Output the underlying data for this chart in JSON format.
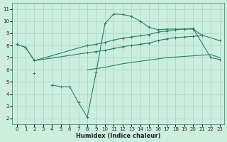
{
  "xlabel": "Humidex (Indice chaleur)",
  "bg_color": "#cceedd",
  "grid_color": "#aaddcc",
  "line_color": "#2d7d6b",
  "xlim": [
    -0.5,
    23.5
  ],
  "ylim": [
    1.5,
    11.5
  ],
  "xticks": [
    0,
    1,
    2,
    3,
    4,
    5,
    6,
    7,
    8,
    9,
    10,
    11,
    12,
    13,
    14,
    15,
    16,
    17,
    18,
    19,
    20,
    21,
    22,
    23
  ],
  "yticks": [
    2,
    3,
    4,
    5,
    6,
    7,
    8,
    9,
    10,
    11
  ],
  "line1_x": [
    0,
    1,
    2,
    8,
    9,
    10,
    11,
    12,
    13,
    14,
    15,
    16,
    17,
    18,
    19,
    20,
    22,
    23
  ],
  "line1_y": [
    8.1,
    7.85,
    6.75,
    8.0,
    8.1,
    8.25,
    8.45,
    8.6,
    8.7,
    8.8,
    8.9,
    9.1,
    9.2,
    9.3,
    9.35,
    9.4,
    7.0,
    6.85
  ],
  "line2_x": [
    0,
    1,
    2,
    8,
    9,
    10,
    11,
    12,
    13,
    14,
    15,
    16,
    17,
    18,
    19,
    20,
    21,
    22,
    23
  ],
  "line2_y": [
    8.1,
    7.85,
    6.75,
    7.4,
    7.5,
    7.6,
    7.75,
    7.9,
    8.0,
    8.1,
    8.2,
    8.4,
    8.55,
    8.65,
    8.7,
    8.75,
    8.8,
    null,
    null
  ],
  "line3_x": [
    0,
    1,
    2,
    3,
    4,
    5,
    6,
    7,
    8,
    9,
    10,
    11,
    12,
    13,
    14,
    15,
    16,
    17,
    18,
    19,
    20,
    21,
    23
  ],
  "line3_y": [
    null,
    null,
    5.7,
    null,
    4.75,
    4.6,
    4.6,
    3.3,
    2.1,
    5.8,
    9.8,
    10.6,
    10.55,
    10.4,
    10.0,
    9.5,
    9.3,
    9.35,
    9.35,
    9.35,
    9.35,
    8.85,
    8.4
  ],
  "line4_x": [
    8,
    9,
    10,
    11,
    12,
    13,
    14,
    15,
    16,
    17,
    18,
    19,
    20,
    21,
    22,
    23
  ],
  "line4_y": [
    6.0,
    6.1,
    6.2,
    6.35,
    6.5,
    6.6,
    6.7,
    6.8,
    6.9,
    7.0,
    7.05,
    7.1,
    7.15,
    7.2,
    7.25,
    7.0
  ]
}
